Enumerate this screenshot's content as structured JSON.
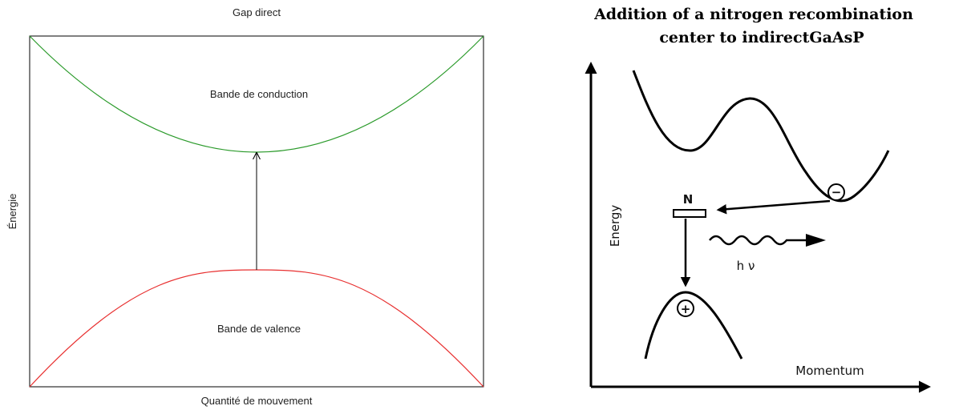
{
  "left": {
    "title": "Gap direct",
    "conduction_label": "Bande de conduction",
    "valence_label": "Bande de valence",
    "y_label": "Énergie",
    "x_label": "Quantité de mouvement"
  },
  "right": {
    "title_lines": [
      "Addition of a nitrogen recombination",
      "center to indirectGaAsP"
    ],
    "y_label": "Energy",
    "x_label": "Momentum",
    "level_label": "N",
    "photon_label": "h ν",
    "electron": "−",
    "hole": "+"
  }
}
